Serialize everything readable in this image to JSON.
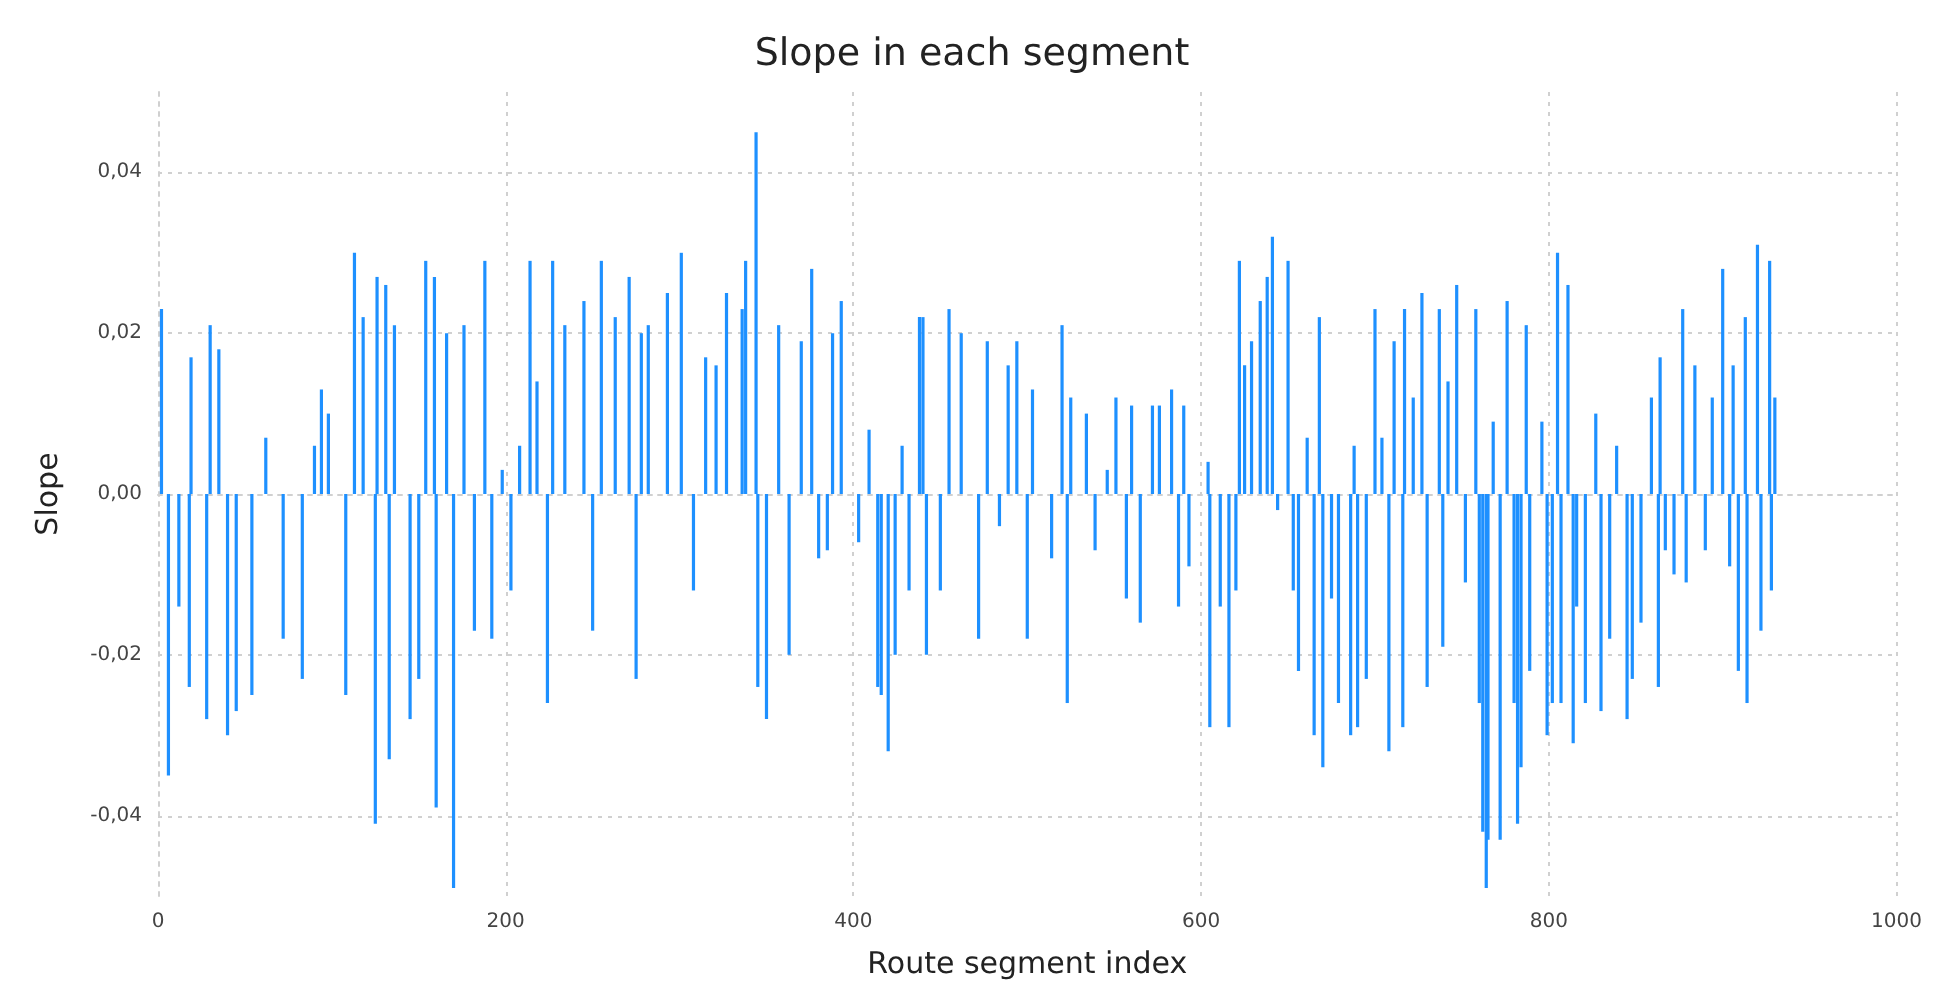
{
  "chart_data": {
    "type": "bar",
    "title": "Slope in each segment",
    "xlabel": "Route segment index",
    "ylabel": "Slope",
    "xlim": [
      0,
      1000
    ],
    "xticks": [
      0,
      200,
      400,
      600,
      800,
      1000
    ],
    "ylim": [
      -0.05,
      0.05
    ],
    "yticks": [
      {
        "value": -0.04,
        "label": "-0,04"
      },
      {
        "value": -0.02,
        "label": "-0,02"
      },
      {
        "value": 0,
        "label": "0,00"
      },
      {
        "value": 0.02,
        "label": "0,02"
      },
      {
        "value": 0.04,
        "label": "0,04"
      }
    ],
    "grid": true,
    "x": [
      2,
      6,
      12,
      18,
      19,
      28,
      30,
      35,
      40,
      45,
      54,
      62,
      72,
      83,
      90,
      94,
      98,
      108,
      113,
      118,
      125,
      126,
      131,
      133,
      136,
      145,
      150,
      154,
      159,
      160,
      166,
      170,
      176,
      182,
      188,
      192,
      198,
      203,
      208,
      214,
      218,
      224,
      227,
      234,
      245,
      250,
      255,
      263,
      271,
      275,
      278,
      282,
      293,
      301,
      308,
      315,
      321,
      327,
      336,
      338,
      344,
      345,
      350,
      357,
      363,
      370,
      376,
      380,
      385,
      388,
      393,
      403,
      409,
      414,
      416,
      420,
      424,
      428,
      432,
      438,
      440,
      442,
      450,
      455,
      462,
      472,
      477,
      484,
      489,
      494,
      500,
      503,
      514,
      520,
      523,
      525,
      534,
      539,
      546,
      551,
      557,
      560,
      565,
      572,
      576,
      583,
      587,
      590,
      593,
      604,
      605,
      611,
      616,
      620,
      622,
      625,
      629,
      634,
      638,
      641,
      644,
      650,
      653,
      656,
      661,
      665,
      668,
      670,
      675,
      679,
      686,
      688,
      690,
      695,
      700,
      704,
      708,
      711,
      716,
      717,
      722,
      727,
      730,
      737,
      739,
      742,
      747,
      752,
      758,
      760,
      762,
      764,
      765,
      768,
      772,
      776,
      780,
      782,
      784,
      787,
      789,
      796,
      799,
      802,
      805,
      807,
      811,
      814,
      816,
      821,
      827,
      830,
      835,
      839,
      845,
      848,
      853,
      859,
      863,
      864,
      867,
      872,
      877,
      879,
      884,
      890,
      894,
      900,
      904,
      906,
      909,
      913,
      914,
      920,
      922,
      927,
      928,
      930
    ],
    "series": [
      {
        "color": "#1e90ff",
        "values": [
          0.023,
          -0.035,
          -0.014,
          -0.024,
          0.017,
          -0.028,
          0.021,
          0.018,
          -0.03,
          -0.027,
          -0.025,
          0.007,
          -0.018,
          -0.023,
          0.006,
          0.013,
          0.01,
          -0.025,
          0.03,
          0.022,
          -0.041,
          0.027,
          0.026,
          -0.033,
          0.021,
          -0.028,
          -0.023,
          0.029,
          0.027,
          -0.039,
          0.02,
          -0.049,
          0.021,
          -0.017,
          0.029,
          -0.018,
          0.003,
          -0.012,
          0.006,
          0.029,
          0.014,
          -0.026,
          0.029,
          0.021,
          0.024,
          -0.017,
          0.029,
          0.022,
          0.027,
          -0.023,
          0.02,
          0.021,
          0.025,
          0.03,
          -0.012,
          0.017,
          0.016,
          0.025,
          0.023,
          0.029,
          0.045,
          -0.024,
          -0.028,
          0.021,
          -0.02,
          0.019,
          0.028,
          -0.008,
          -0.007,
          0.02,
          0.024,
          -0.006,
          0.008,
          -0.024,
          -0.025,
          -0.032,
          -0.02,
          0.006,
          -0.012,
          0.022,
          0.022,
          -0.02,
          -0.012,
          0.023,
          0.02,
          -0.018,
          0.019,
          -0.004,
          0.016,
          0.019,
          -0.018,
          0.013,
          -0.008,
          0.021,
          -0.026,
          0.012,
          0.01,
          -0.007,
          0.003,
          0.012,
          -0.013,
          0.011,
          -0.016,
          0.011,
          0.011,
          0.013,
          -0.014,
          0.011,
          -0.009,
          0.004,
          -0.029,
          -0.014,
          -0.029,
          -0.012,
          0.029,
          0.016,
          0.019,
          0.024,
          0.027,
          0.032,
          -0.002,
          0.029,
          -0.012,
          -0.022,
          0.007,
          -0.03,
          0.022,
          -0.034,
          -0.013,
          -0.026,
          -0.03,
          0.006,
          -0.029,
          -0.023,
          0.023,
          0.007,
          -0.032,
          0.019,
          -0.029,
          0.023,
          0.012,
          0.025,
          -0.024,
          0.023,
          -0.019,
          0.014,
          0.026,
          -0.011,
          0.023,
          -0.026,
          -0.042,
          -0.049,
          -0.043,
          0.009,
          -0.043,
          0.024,
          -0.026,
          -0.041,
          -0.034,
          0.021,
          -0.022,
          0.009,
          -0.03,
          -0.026,
          0.03,
          -0.026,
          0.026,
          -0.031,
          -0.014,
          -0.026,
          0.01,
          -0.027,
          -0.018,
          0.006,
          -0.028,
          -0.023,
          -0.016,
          0.012,
          -0.024,
          0.017,
          -0.007,
          -0.01,
          0.023,
          -0.011,
          0.016,
          -0.007,
          0.012,
          0.028,
          -0.009,
          0.016,
          -0.022,
          0.022,
          -0.026,
          0.031,
          -0.017,
          0.029,
          -0.012,
          0.012
        ]
      }
    ]
  }
}
